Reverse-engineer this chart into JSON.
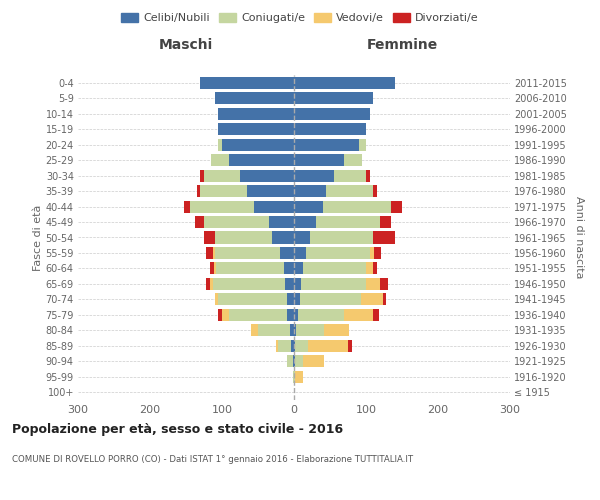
{
  "age_groups": [
    "100+",
    "95-99",
    "90-94",
    "85-89",
    "80-84",
    "75-79",
    "70-74",
    "65-69",
    "60-64",
    "55-59",
    "50-54",
    "45-49",
    "40-44",
    "35-39",
    "30-34",
    "25-29",
    "20-24",
    "15-19",
    "10-14",
    "5-9",
    "0-4"
  ],
  "birth_years": [
    "≤ 1915",
    "1916-1920",
    "1921-1925",
    "1926-1930",
    "1931-1935",
    "1936-1940",
    "1941-1945",
    "1946-1950",
    "1951-1955",
    "1956-1960",
    "1961-1965",
    "1966-1970",
    "1971-1975",
    "1976-1980",
    "1981-1985",
    "1986-1990",
    "1991-1995",
    "1996-2000",
    "2001-2005",
    "2006-2010",
    "2011-2015"
  ],
  "male": {
    "celibi": [
      0,
      0,
      2,
      4,
      5,
      10,
      10,
      12,
      14,
      20,
      30,
      35,
      55,
      65,
      75,
      90,
      100,
      105,
      105,
      110,
      130
    ],
    "coniugati": [
      0,
      1,
      8,
      18,
      45,
      80,
      95,
      100,
      95,
      90,
      80,
      90,
      90,
      65,
      50,
      25,
      5,
      0,
      0,
      0,
      0
    ],
    "vedovi": [
      0,
      0,
      0,
      3,
      10,
      10,
      5,
      5,
      2,
      2,
      0,
      0,
      0,
      0,
      0,
      0,
      0,
      0,
      0,
      0,
      0
    ],
    "divorziati": [
      0,
      0,
      0,
      0,
      0,
      5,
      0,
      5,
      5,
      10,
      15,
      12,
      8,
      5,
      5,
      0,
      0,
      0,
      0,
      0,
      0
    ]
  },
  "female": {
    "nubili": [
      0,
      0,
      2,
      2,
      3,
      5,
      8,
      10,
      12,
      16,
      22,
      30,
      40,
      45,
      55,
      70,
      90,
      100,
      105,
      110,
      140
    ],
    "coniugate": [
      0,
      2,
      10,
      18,
      38,
      65,
      85,
      90,
      88,
      90,
      88,
      90,
      95,
      65,
      45,
      25,
      10,
      0,
      0,
      0,
      0
    ],
    "vedove": [
      0,
      10,
      30,
      55,
      35,
      40,
      30,
      20,
      10,
      5,
      0,
      0,
      0,
      0,
      0,
      0,
      0,
      0,
      0,
      0,
      0
    ],
    "divorziate": [
      0,
      0,
      0,
      5,
      0,
      8,
      5,
      10,
      5,
      10,
      30,
      15,
      15,
      5,
      5,
      0,
      0,
      0,
      0,
      0,
      0
    ]
  },
  "colors": {
    "celibi_nubili": "#4472a8",
    "coniugati": "#c5d6a0",
    "vedovi": "#f5c96e",
    "divorziati": "#cc2222"
  },
  "title": "Popolazione per età, sesso e stato civile - 2016",
  "subtitle": "COMUNE DI ROVELLO PORRO (CO) - Dati ISTAT 1° gennaio 2016 - Elaborazione TUTTITALIA.IT",
  "xlabel_left": "Maschi",
  "xlabel_right": "Femmine",
  "ylabel_left": "Fasce di età",
  "ylabel_right": "Anni di nascita",
  "xlim": 300,
  "legend_labels": [
    "Celibi/Nubili",
    "Coniugati/e",
    "Vedovi/e",
    "Divorziati/e"
  ],
  "bg_color": "#ffffff",
  "grid_color": "#cccccc"
}
